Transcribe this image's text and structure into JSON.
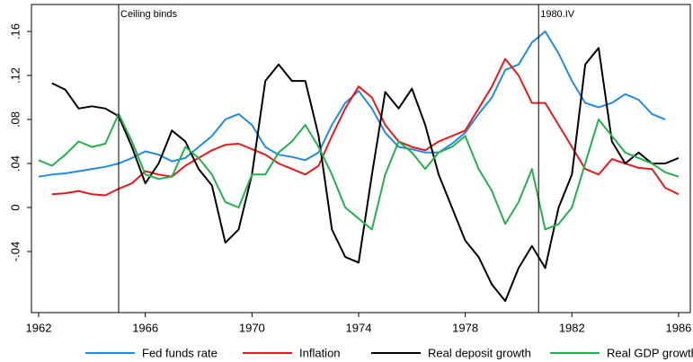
{
  "chart_data": {
    "type": "line",
    "x": [
      1962,
      1962.5,
      1963,
      1963.5,
      1964,
      1964.5,
      1965,
      1965.5,
      1966,
      1966.5,
      1967,
      1967.5,
      1968,
      1968.5,
      1969,
      1969.5,
      1970,
      1970.5,
      1971,
      1971.5,
      1972,
      1972.5,
      1973,
      1973.5,
      1974,
      1974.5,
      1975,
      1975.5,
      1976,
      1976.5,
      1977,
      1977.5,
      1978,
      1978.5,
      1979,
      1979.5,
      1980,
      1980.5,
      1981,
      1981.5,
      1982,
      1982.5,
      1983,
      1983.5,
      1984,
      1984.5,
      1985,
      1985.5,
      1986
    ],
    "series": [
      {
        "name": "Fed funds rate",
        "color": "#1f8be6",
        "values": [
          0.028,
          0.03,
          0.031,
          0.033,
          0.035,
          0.037,
          0.04,
          0.045,
          0.051,
          0.048,
          0.042,
          0.045,
          0.055,
          0.065,
          0.08,
          0.085,
          0.075,
          0.055,
          0.048,
          0.046,
          0.043,
          0.05,
          0.075,
          0.095,
          0.106,
          0.09,
          0.068,
          0.055,
          0.053,
          0.05,
          0.05,
          0.058,
          0.068,
          0.085,
          0.1,
          0.125,
          0.13,
          0.15,
          0.16,
          0.14,
          0.115,
          0.095,
          0.091,
          0.095,
          0.103,
          0.098,
          0.085,
          0.08,
          null
        ]
      },
      {
        "name": "Inflation",
        "color": "#e8191c",
        "values": [
          null,
          0.012,
          0.013,
          0.015,
          0.012,
          0.011,
          0.017,
          0.022,
          0.033,
          0.03,
          0.028,
          0.038,
          0.045,
          0.052,
          0.057,
          0.058,
          0.053,
          0.048,
          0.04,
          0.035,
          0.03,
          0.038,
          0.065,
          0.09,
          0.11,
          0.1,
          0.075,
          0.06,
          0.055,
          0.052,
          0.06,
          0.065,
          0.07,
          0.09,
          0.11,
          0.135,
          0.12,
          0.095,
          0.095,
          0.075,
          0.055,
          0.035,
          0.03,
          0.044,
          0.04,
          0.036,
          0.035,
          0.018,
          0.012
        ]
      },
      {
        "name": "Real deposit growth",
        "color": "#000000",
        "values": [
          null,
          0.113,
          0.107,
          0.09,
          0.092,
          0.09,
          0.083,
          0.055,
          0.022,
          0.04,
          0.07,
          0.06,
          0.035,
          0.02,
          -0.032,
          -0.02,
          0.03,
          0.115,
          0.13,
          0.115,
          0.115,
          0.065,
          -0.02,
          -0.045,
          -0.05,
          0.03,
          0.105,
          0.09,
          0.108,
          0.075,
          0.03,
          0.0,
          -0.03,
          -0.045,
          -0.07,
          -0.085,
          -0.055,
          -0.035,
          -0.055,
          0.0,
          0.03,
          0.13,
          0.145,
          0.06,
          0.04,
          0.05,
          0.04,
          0.04,
          0.045
        ]
      },
      {
        "name": "Real GDP growth",
        "color": "#22b14c",
        "values": [
          0.043,
          0.038,
          0.048,
          0.06,
          0.055,
          0.058,
          0.085,
          0.06,
          0.03,
          0.026,
          0.028,
          0.055,
          0.045,
          0.03,
          0.005,
          0.0,
          0.03,
          0.03,
          0.05,
          0.06,
          0.075,
          0.055,
          0.03,
          0.0,
          -0.01,
          -0.02,
          0.03,
          0.06,
          0.05,
          0.035,
          0.05,
          0.055,
          0.065,
          0.035,
          0.015,
          -0.015,
          0.005,
          0.035,
          -0.02,
          -0.015,
          0.0,
          0.04,
          0.08,
          0.065,
          0.05,
          0.045,
          0.04,
          0.032,
          0.028
        ]
      }
    ],
    "xlim": [
      1961.73,
      1986.44
    ],
    "xticks": [
      1962,
      1966,
      1970,
      1974,
      1978,
      1982,
      1986
    ],
    "ylim": [
      -0.0955,
      0.1845
    ],
    "yticks": [
      {
        "value": -0.04,
        "label": "-.04"
      },
      0,
      {
        "value": 0.04,
        "label": ".04"
      },
      {
        "value": 0.08,
        "label": ".08"
      },
      {
        "value": 0.12,
        "label": ".12"
      },
      {
        "value": 0.16,
        "label": ".16"
      }
    ],
    "grid": false,
    "annotations": [
      {
        "text": "Ceiling binds",
        "x": 1965
      },
      {
        "text": "1980.IV",
        "x": 1980.75
      }
    ]
  }
}
